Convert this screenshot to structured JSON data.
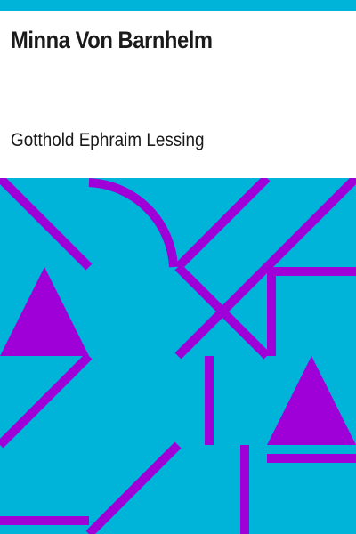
{
  "book": {
    "title": "Minna Von Barnhelm",
    "author": "Gotthold Ephraim Lessing"
  },
  "colors": {
    "accent": "#00b3d9",
    "pattern": "#a000d8",
    "background": "#ffffff",
    "text": "#1a1a1a"
  }
}
